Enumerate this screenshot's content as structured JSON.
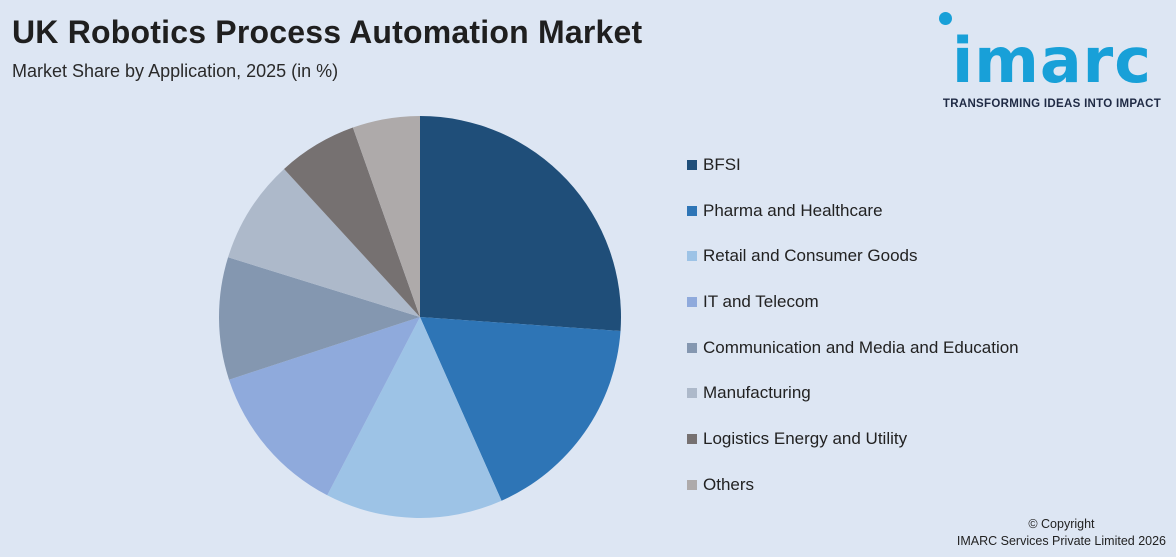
{
  "header": {
    "title": "UK Robotics Process Automation Market",
    "subtitle": "Market Share by Application, 2025 (in %)"
  },
  "logo": {
    "word": "imarc",
    "tagline": "TRANSFORMING IDEAS INTO IMPACT",
    "color": "#18a0d8"
  },
  "footer": {
    "copyright_line1": "© Copyright",
    "copyright_line2": "IMARC Services Private Limited 2026"
  },
  "chart_data": {
    "type": "pie",
    "title": "UK Robotics Process Automation Market",
    "subtitle": "Market Share by Application, 2025 (in %)",
    "legend_position": "right",
    "categories": [
      "BFSI",
      "Pharma and Healthcare",
      "Retail and Consumer Goods",
      "IT and Telecom",
      "Communication and Media and Education",
      "Manufacturing",
      "Logistics Energy and Utility",
      "Others"
    ],
    "values": [
      26.5,
      17.5,
      14.5,
      12.5,
      10,
      8.5,
      6.5,
      5.5
    ],
    "colors": [
      "#1f4e79",
      "#2e75b6",
      "#9dc3e6",
      "#8faadc",
      "#8497b0",
      "#adb9ca",
      "#767171",
      "#aeaaaa"
    ]
  }
}
